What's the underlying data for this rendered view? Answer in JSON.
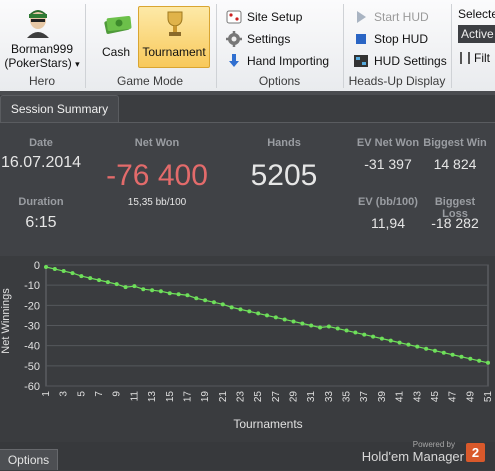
{
  "ribbon": {
    "hero": {
      "name_line1": "Borman999",
      "name_line2": "(PokerStars)",
      "dropdown": "▾",
      "group_label": "Hero"
    },
    "game_mode": {
      "cash_label": "Cash",
      "tournament_label": "Tournament",
      "group_label": "Game Mode",
      "active": "Tournament"
    },
    "options": {
      "site_setup": "Site Setup",
      "settings": "Settings",
      "hand_importing": "Hand Importing",
      "group_label": "Options"
    },
    "hud": {
      "start_hud": "Start HUD",
      "stop_hud": "Stop HUD",
      "hud_settings": "HUD Settings",
      "group_label": "Heads-Up Display"
    },
    "right": {
      "selected_label": "Selecte",
      "active_value": "Active",
      "filter_label": "Filt"
    }
  },
  "tab": {
    "label": "Session Summary"
  },
  "summary": {
    "date_label": "Date",
    "date_value": "16.07.2014",
    "duration_label": "Duration",
    "duration_value": "6:15",
    "net_won_label": "Net Won",
    "net_won_value": "-76 400",
    "bb_per_100": "15,35 bb/100",
    "hands_label": "Hands",
    "hands_value": "5205",
    "ev_net_won_label": "EV Net Won",
    "ev_net_won_value": "-31 397",
    "biggest_win_label": "Biggest Win",
    "biggest_win_value": "14 824",
    "ev_bb_label": "EV (bb/100)",
    "ev_bb_value": "11,94",
    "biggest_loss_label": "Biggest Loss",
    "biggest_loss_value": "-18 282",
    "colors": {
      "net_won": "#e36b6b",
      "label": "#9a9da2",
      "value": "#e6e6e6"
    }
  },
  "chart_data": {
    "type": "line",
    "xlabel": "Tournaments",
    "ylabel": "Net Winnings",
    "xlim": [
      1,
      51
    ],
    "ylim": [
      -60,
      0
    ],
    "yticks": [
      0,
      -10,
      -20,
      -30,
      -40,
      -50,
      -60
    ],
    "xticks": [
      1,
      3,
      5,
      7,
      9,
      11,
      13,
      15,
      17,
      19,
      21,
      23,
      25,
      27,
      29,
      31,
      33,
      35,
      37,
      39,
      41,
      43,
      45,
      47,
      49,
      51
    ],
    "grid": true,
    "series": [
      {
        "color": "#6ee05a",
        "x": [
          1,
          2,
          3,
          4,
          5,
          6,
          7,
          8,
          9,
          10,
          11,
          12,
          13,
          14,
          15,
          16,
          17,
          18,
          19,
          20,
          21,
          22,
          23,
          24,
          25,
          26,
          27,
          28,
          29,
          30,
          31,
          32,
          33,
          34,
          35,
          36,
          37,
          38,
          39,
          40,
          41,
          42,
          43,
          44,
          45,
          46,
          47,
          48,
          49,
          50,
          51
        ],
        "values": [
          -1,
          -2,
          -3,
          -4,
          -5.5,
          -6.5,
          -7.5,
          -8.5,
          -9.5,
          -11,
          -10.5,
          -12,
          -12.5,
          -13,
          -14,
          -14.5,
          -15,
          -16.5,
          -17.5,
          -18.5,
          -19.5,
          -21,
          -22,
          -23,
          -24,
          -25,
          -26,
          -27,
          -28,
          -29,
          -30,
          -31,
          -30.5,
          -31.5,
          -32.5,
          -33.5,
          -34.5,
          -35.5,
          -36.5,
          -37.5,
          -38.5,
          -39.5,
          -40.5,
          -41.5,
          -42.5,
          -43.5,
          -44.5,
          -45.5,
          -46.5,
          -47.5,
          -48.5
        ]
      }
    ]
  },
  "footer": {
    "options_label": "Options",
    "powered_by": "Powered by",
    "brand": "Hold'em Manager",
    "badge": "2"
  }
}
